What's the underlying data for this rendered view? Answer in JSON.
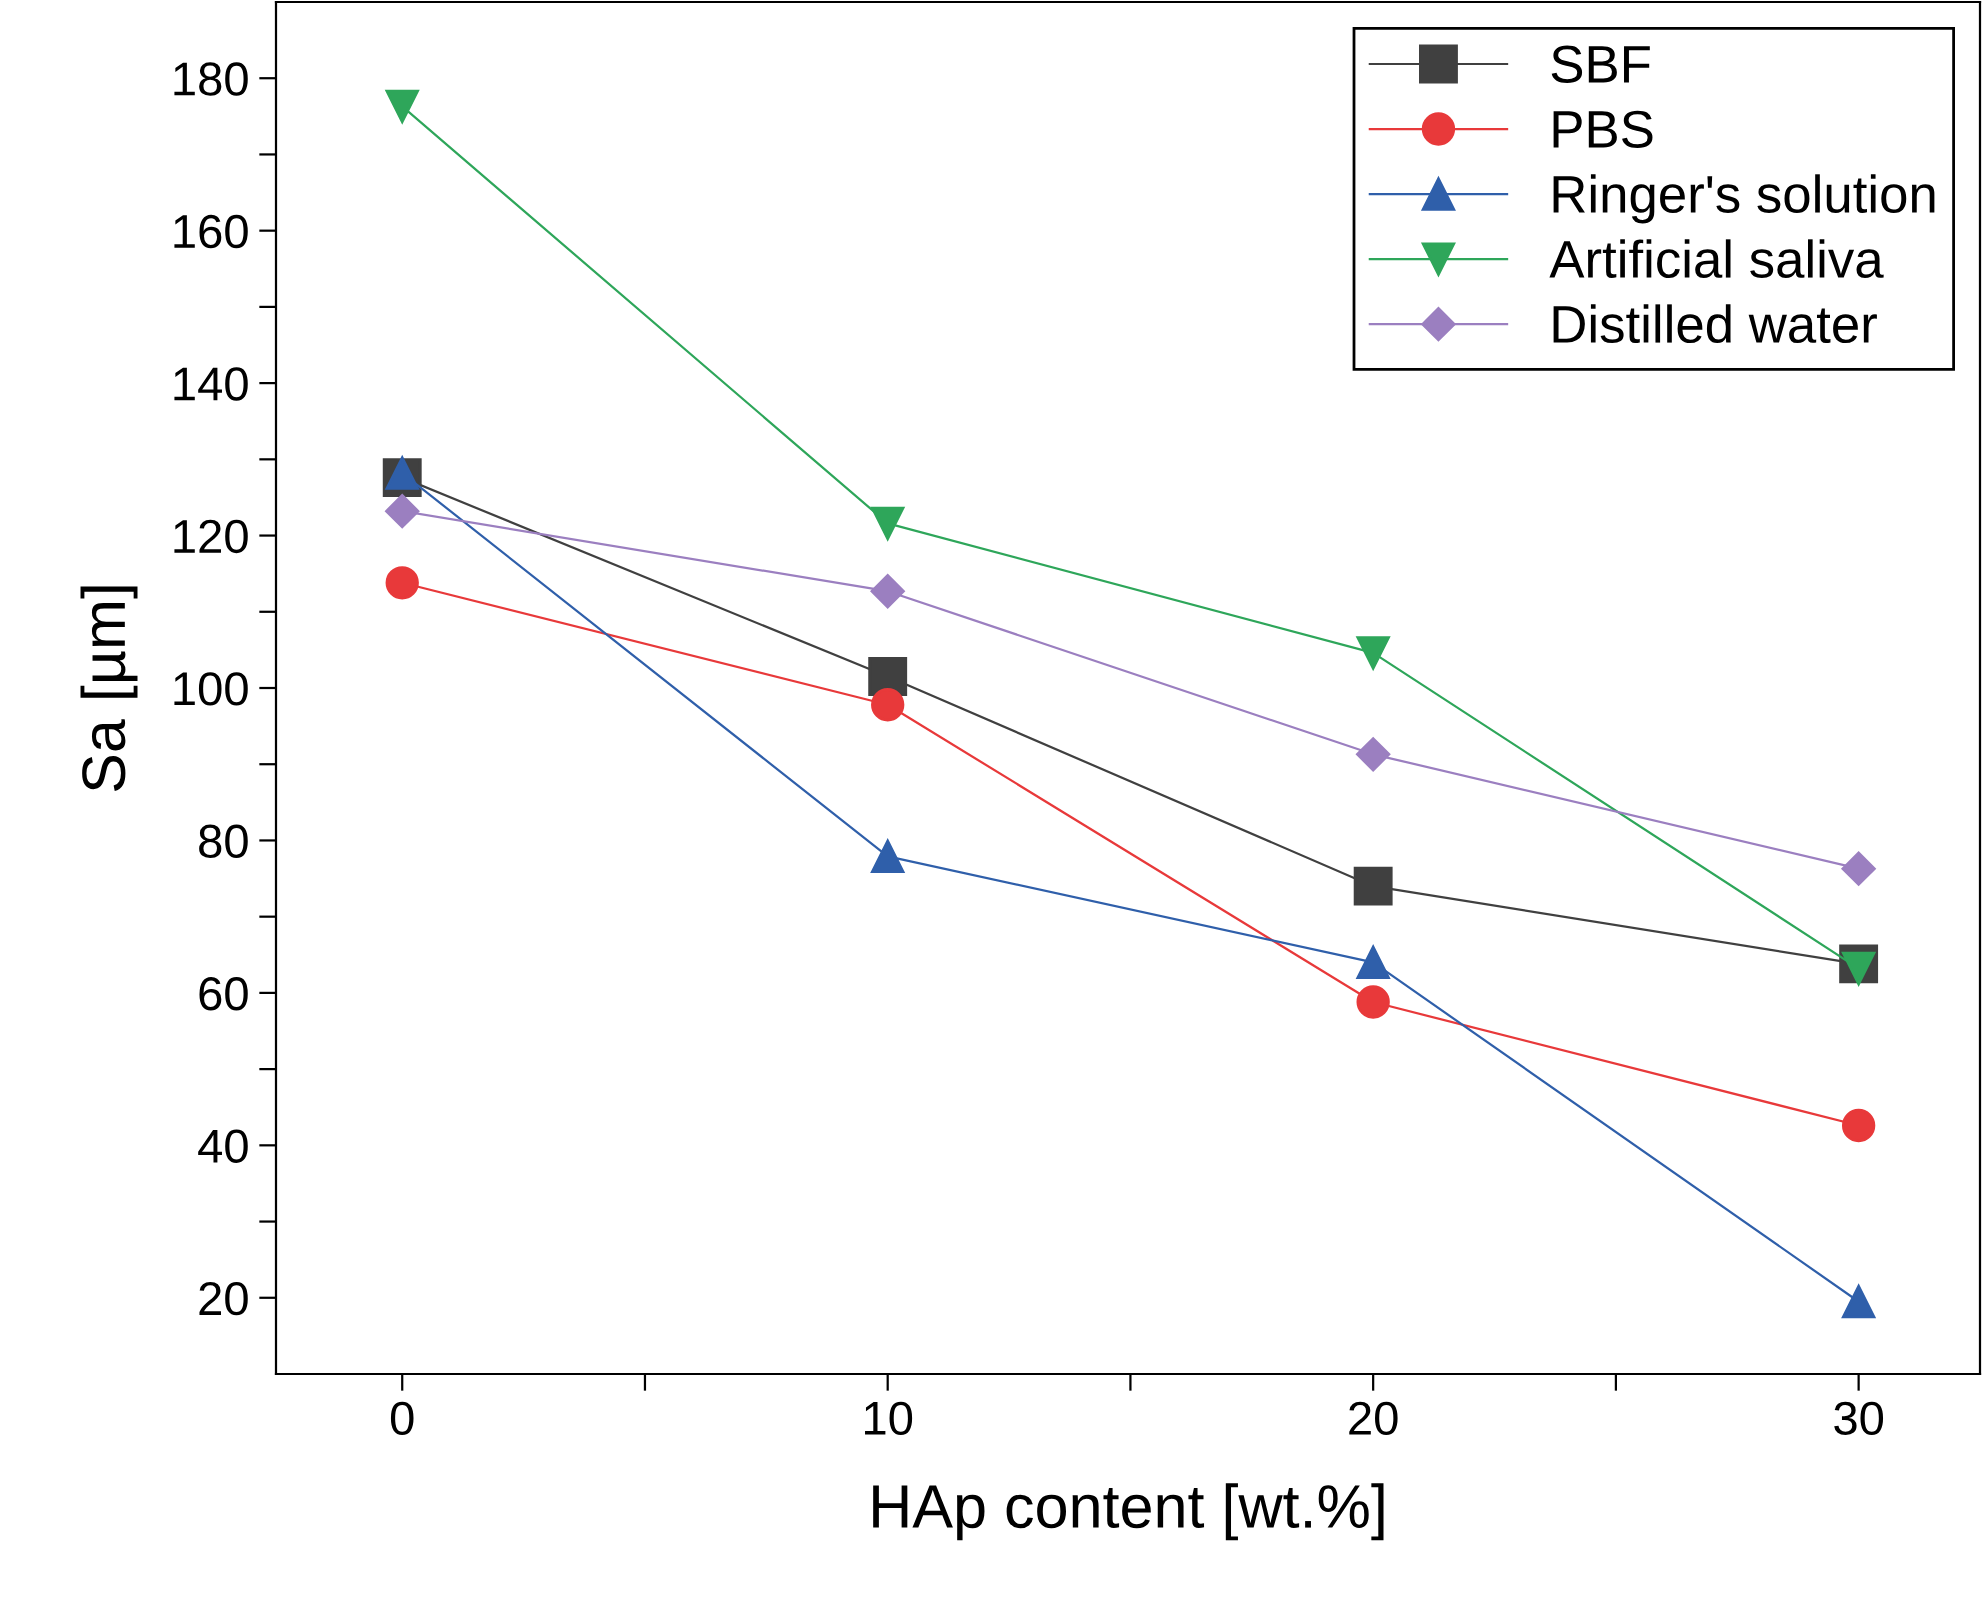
{
  "chart_data": {
    "type": "line",
    "xlabel": "HAp content [wt.%]",
    "ylabel": "Sa [µm]",
    "x": [
      0,
      10,
      20,
      30
    ],
    "xlim": [
      -2.6,
      32.5
    ],
    "ylim": [
      10,
      190
    ],
    "xticks": [
      0,
      {
        "value": 5,
        "label": null
      },
      10,
      {
        "value": 15,
        "label": null
      },
      20,
      {
        "value": 25,
        "label": null
      },
      30
    ],
    "yticks": [
      20,
      {
        "value": 30,
        "label": null
      },
      40,
      {
        "value": 50,
        "label": null
      },
      60,
      {
        "value": 70,
        "label": null
      },
      80,
      {
        "value": 90,
        "label": null
      },
      100,
      {
        "value": 110,
        "label": null
      },
      120,
      {
        "value": 130,
        "label": null
      },
      140,
      {
        "value": 150,
        "label": null
      },
      160,
      {
        "value": 170,
        "label": null
      },
      180
    ],
    "grid": false,
    "legend": "top right",
    "line_style": "solid",
    "series": [
      {
        "name": "SBF",
        "color": "#404040",
        "marker": "square",
        "values": [
          127.6,
          101.5,
          74,
          63.8
        ]
      },
      {
        "name": "PBS",
        "color": "#e8393a",
        "marker": "circle",
        "values": [
          113.8,
          97.8,
          58.8,
          42.6
        ]
      },
      {
        "name": "Ringer's solution",
        "color": "#2f5faa",
        "marker": "triangle",
        "values": [
          128.2,
          77.9,
          64,
          19.5
        ]
      },
      {
        "name": "Artificial saliva",
        "color": "#2ea65a",
        "marker": "triangle_down",
        "values": [
          176.3,
          121.6,
          104.6,
          63.2
        ]
      },
      {
        "name": "Distilled water",
        "color": "#9b7fc0",
        "marker": "diamond",
        "values": [
          123.2,
          112.7,
          91.3,
          76.3
        ]
      }
    ]
  }
}
